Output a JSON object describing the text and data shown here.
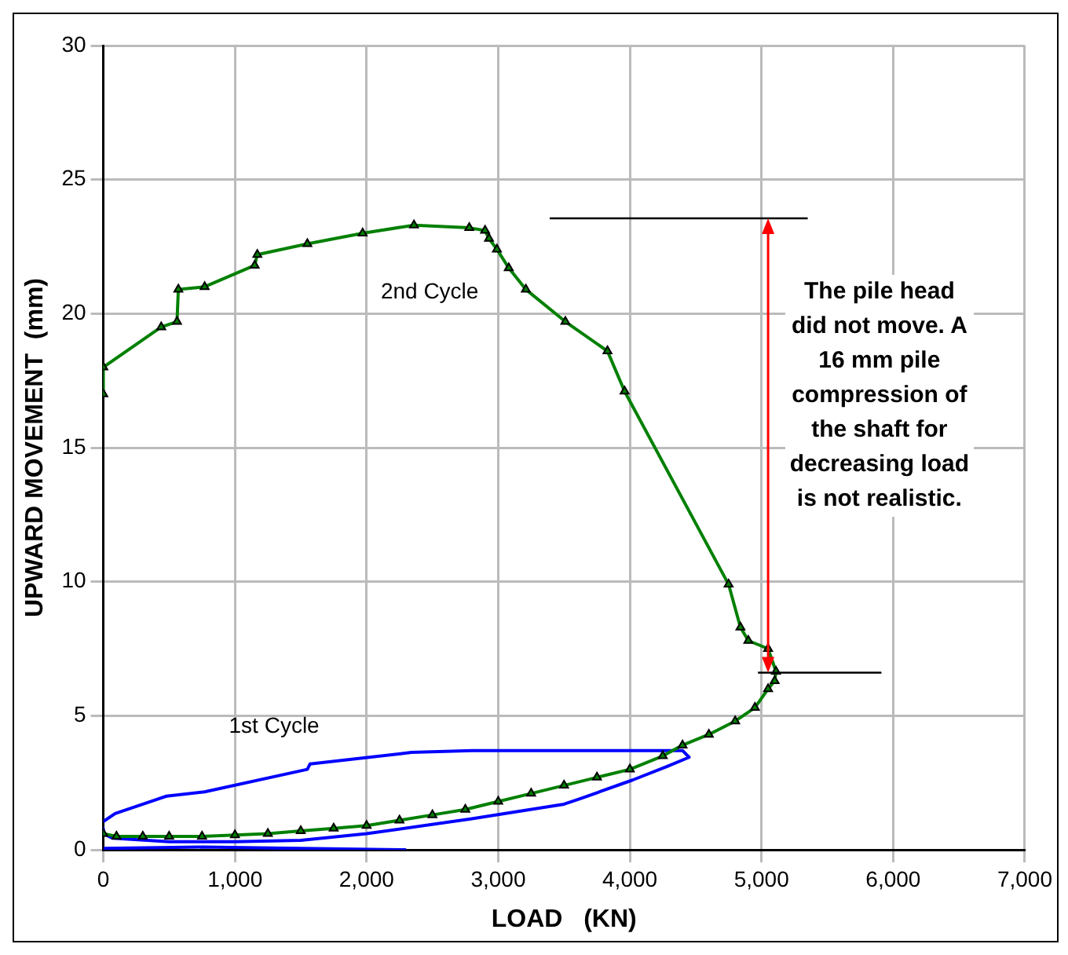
{
  "chart_data": {
    "type": "line",
    "xlabel": "LOAD   (KN)",
    "ylabel": "UPWARD MOVEMENT  (mm)",
    "xlim": [
      0,
      7000
    ],
    "xticks": [
      0,
      {
        "value": 1000,
        "label": "1,000"
      },
      {
        "value": 2000,
        "label": "2,000"
      },
      {
        "value": 3000,
        "label": "3,000"
      },
      {
        "value": 4000,
        "label": "4,000"
      },
      {
        "value": 5000,
        "label": "5,000"
      },
      {
        "value": 6000,
        "label": "6,000"
      },
      {
        "value": 7000,
        "label": "7,000"
      }
    ],
    "ylim": [
      0,
      30
    ],
    "yticks": [
      0,
      5,
      10,
      15,
      20,
      25,
      30
    ],
    "grid": true,
    "legend": false,
    "annotations": [
      "The pile head did not move. A 16 mm pile compression of the shaft for decreasing load is not realistic."
    ],
    "series": [
      {
        "name": "2nd Cycle",
        "color": "#008000",
        "marker": "triangle",
        "x": [
          0,
          100,
          300,
          500,
          750,
          1000,
          1250,
          1500,
          1750,
          2000,
          2250,
          2500,
          2750,
          3000,
          3250,
          3500,
          3750,
          4000,
          4250,
          4400,
          4600,
          4800,
          4950,
          5050,
          5100,
          5110,
          5050,
          4900,
          4840,
          4750,
          3960,
          3830,
          3510,
          3210,
          3080,
          2990,
          2930,
          2900,
          2780,
          2360,
          1970,
          1550,
          1170,
          1150,
          770,
          570,
          560,
          440,
          0,
          0
        ],
        "values": [
          0.6,
          0.5,
          0.5,
          0.5,
          0.5,
          0.55,
          0.6,
          0.7,
          0.8,
          0.9,
          1.1,
          1.3,
          1.5,
          1.8,
          2.1,
          2.4,
          2.7,
          3.0,
          3.5,
          3.9,
          4.3,
          4.8,
          5.3,
          6.0,
          6.3,
          6.65,
          7.5,
          7.8,
          8.3,
          9.9,
          17.1,
          18.6,
          19.7,
          20.9,
          21.7,
          22.4,
          22.8,
          23.1,
          23.2,
          23.3,
          23.0,
          22.6,
          22.2,
          21.8,
          21.0,
          20.9,
          19.7,
          19.5,
          18.0,
          17.0
        ]
      },
      {
        "name": "1st Cycle",
        "color": "#0000ff",
        "marker": "none",
        "x": [
          0,
          0,
          70,
          500,
          1000,
          1500,
          2000,
          2790,
          3500,
          3620,
          4020,
          4280,
          4450,
          4400,
          3700,
          2800,
          2340,
          1570,
          1550,
          770,
          480,
          90,
          0
        ],
        "values": [
          0.8,
          0.6,
          0.43,
          0.3,
          0.3,
          0.35,
          0.6,
          1.15,
          1.7,
          1.9,
          2.6,
          3.1,
          3.45,
          3.7,
          3.7,
          3.7,
          3.63,
          3.2,
          3.0,
          2.16,
          2.0,
          1.35,
          1.05
        ]
      },
      {
        "color": "#0000ff",
        "marker": "none",
        "x": [
          0,
          750,
          1500,
          2300
        ],
        "values": [
          0.05,
          0.1,
          0.05,
          0
        ]
      }
    ]
  }
}
